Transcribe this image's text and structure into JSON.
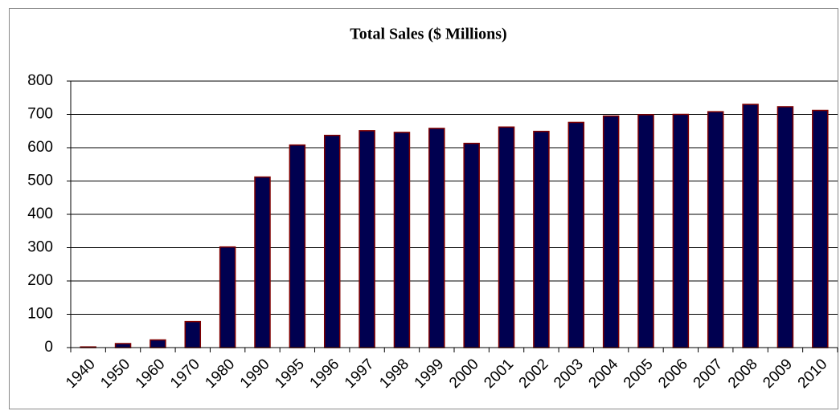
{
  "chart_data": {
    "type": "bar",
    "title": "Total Sales ($ Millions)",
    "categories": [
      "1940",
      "1950",
      "1960",
      "1970",
      "1980",
      "1990",
      "1995",
      "1996",
      "1997",
      "1998",
      "1999",
      "2000",
      "2001",
      "2002",
      "2003",
      "2004",
      "2005",
      "2006",
      "2007",
      "2008",
      "2009",
      "2010"
    ],
    "values": [
      2,
      12,
      23,
      78,
      302,
      512,
      608,
      637,
      651,
      646,
      658,
      613,
      662,
      649,
      676,
      695,
      699,
      700,
      708,
      730,
      723,
      712
    ],
    "color": "#000050",
    "edge_color": "#800000",
    "ylim": [
      0,
      800
    ],
    "yticks": [
      0,
      100,
      200,
      300,
      400,
      500,
      600,
      700,
      800
    ],
    "grid": true
  }
}
